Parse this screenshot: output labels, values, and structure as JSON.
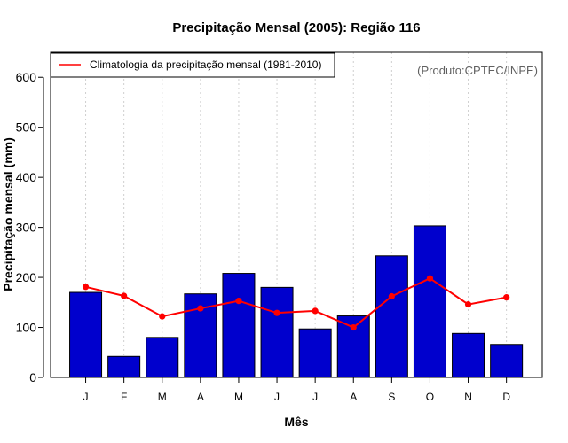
{
  "chart_data": {
    "type": "bar",
    "title": "Precipitação Mensal (2005): Região 116",
    "xlabel": "Mês",
    "ylabel": "Precipitação mensal (mm)",
    "ylim": [
      0,
      650
    ],
    "yticks": [
      0,
      100,
      200,
      300,
      400,
      500,
      600
    ],
    "grid": "vertical dotted",
    "source_note": "(Produto:CPTEC/INPE)",
    "categories": [
      "J",
      "F",
      "M",
      "A",
      "M",
      "J",
      "J",
      "A",
      "S",
      "O",
      "N",
      "D"
    ],
    "series": [
      {
        "name": "Precipitação mensal 2005",
        "type": "bar",
        "color": "#0000CD",
        "values": [
          170,
          42,
          80,
          167,
          208,
          180,
          97,
          123,
          243,
          303,
          88,
          66
        ]
      },
      {
        "name": "Climatologia da precipitação mensal (1981-2010)",
        "type": "line",
        "color": "#FF0000",
        "values": [
          181,
          163,
          122,
          138,
          153,
          129,
          133,
          100,
          162,
          198,
          146,
          160
        ]
      }
    ],
    "legend": {
      "position": "top-left",
      "entries": [
        "Climatologia da precipitação mensal (1981-2010)"
      ]
    }
  }
}
